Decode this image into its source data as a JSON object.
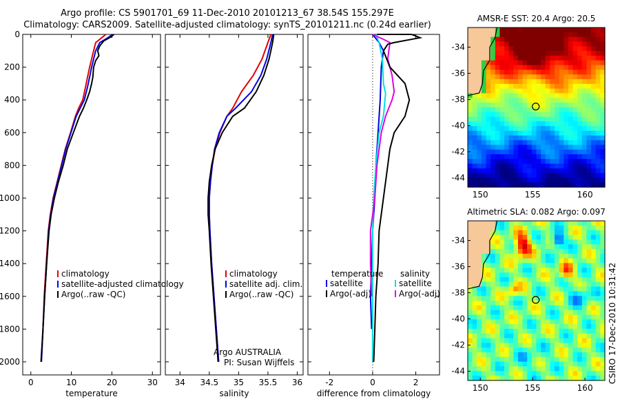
{
  "header": {
    "title_line1": "Argo profile: CS 5901701_69 11-Dec-2010 20101213_67 38.54S 155.297E",
    "title_line2": "Climatology: CARS2009. Satellite-adjusted climatology: synTS_20101211.nc (0.24d earlier)"
  },
  "colors": {
    "climatology": "#e00000",
    "satellite": "#0000e0",
    "argo": "#000000",
    "sat_salinity": "#00e0e0",
    "argo_salinity": "#e000e0",
    "land": "#f6c89a"
  },
  "chart_data": [
    {
      "type": "line",
      "name": "temperature-profile",
      "xlabel": "temperature",
      "xlim": [
        -2,
        32
      ],
      "xticks": [
        0,
        10,
        20,
        30
      ],
      "ylim": [
        0,
        2080
      ],
      "yticks": [
        0,
        200,
        400,
        600,
        800,
        1000,
        1200,
        1400,
        1600,
        1800,
        2000
      ],
      "y_reversed": true,
      "legend": [
        "climatology",
        "satellite-adjusted climatology",
        "Argo(..raw -QC)"
      ],
      "series": [
        {
          "name": "climatology",
          "color": "#e00000",
          "points": [
            [
              18.5,
              0
            ],
            [
              17.5,
              20
            ],
            [
              16,
              50
            ],
            [
              15.5,
              100
            ],
            [
              15,
              150
            ],
            [
              14.5,
              200
            ],
            [
              14,
              260
            ],
            [
              13.5,
              320
            ],
            [
              12.8,
              400
            ],
            [
              11.8,
              450
            ],
            [
              11,
              500
            ],
            [
              9.8,
              600
            ],
            [
              8.5,
              700
            ],
            [
              7.5,
              800
            ],
            [
              6.5,
              900
            ],
            [
              5.5,
              1000
            ],
            [
              4.8,
              1100
            ],
            [
              4.3,
              1200
            ],
            [
              3.8,
              1400
            ],
            [
              3.3,
              1600
            ],
            [
              3,
              1800
            ],
            [
              2.6,
              2000
            ]
          ]
        },
        {
          "name": "satellite",
          "color": "#0000e0",
          "points": [
            [
              20.2,
              0
            ],
            [
              19,
              20
            ],
            [
              17,
              50
            ],
            [
              16,
              100
            ],
            [
              15.5,
              150
            ],
            [
              15,
              200
            ],
            [
              14.5,
              260
            ],
            [
              14,
              320
            ],
            [
              13.2,
              400
            ],
            [
              12.2,
              450
            ],
            [
              11.2,
              500
            ],
            [
              9.9,
              600
            ],
            [
              8.6,
              700
            ],
            [
              7.6,
              800
            ],
            [
              6.6,
              900
            ],
            [
              5.6,
              1000
            ],
            [
              4.9,
              1100
            ],
            [
              4.4,
              1200
            ],
            [
              3.9,
              1400
            ],
            [
              3.4,
              1600
            ],
            [
              3,
              1800
            ],
            [
              2.6,
              2000
            ]
          ]
        },
        {
          "name": "Argo",
          "color": "#000000",
          "points": [
            [
              20.5,
              0
            ],
            [
              19.8,
              15
            ],
            [
              18,
              40
            ],
            [
              17,
              70
            ],
            [
              16.5,
              100
            ],
            [
              16.8,
              130
            ],
            [
              16,
              160
            ],
            [
              15.5,
              200
            ],
            [
              15.3,
              260
            ],
            [
              15,
              300
            ],
            [
              14.5,
              350
            ],
            [
              13.8,
              400
            ],
            [
              13,
              450
            ],
            [
              12,
              500
            ],
            [
              10.5,
              600
            ],
            [
              9,
              700
            ],
            [
              8,
              800
            ],
            [
              6.8,
              900
            ],
            [
              5.8,
              1000
            ],
            [
              5,
              1100
            ],
            [
              4.5,
              1200
            ],
            [
              3.9,
              1400
            ],
            [
              3.4,
              1600
            ],
            [
              3,
              1800
            ],
            [
              2.5,
              2000
            ]
          ]
        }
      ]
    },
    {
      "type": "line",
      "name": "salinity-profile",
      "xlabel": "salinity",
      "xlim": [
        33.75,
        36.1
      ],
      "xticks": [
        34,
        34.5,
        35,
        35.5,
        36
      ],
      "ylim": [
        0,
        2080
      ],
      "y_reversed": true,
      "legend": [
        "climatology",
        "satellite adj. clim.",
        "Argo(..raw -QC)"
      ],
      "annotation": [
        "Argo AUSTRALIA",
        "PI: Susan Wijffels"
      ],
      "series": [
        {
          "name": "climatology",
          "color": "#e00000",
          "points": [
            [
              35.55,
              0
            ],
            [
              35.5,
              50
            ],
            [
              35.4,
              150
            ],
            [
              35.25,
              250
            ],
            [
              35.05,
              350
            ],
            [
              34.9,
              450
            ],
            [
              34.8,
              500
            ],
            [
              34.68,
              600
            ],
            [
              34.6,
              700
            ],
            [
              34.55,
              800
            ],
            [
              34.52,
              900
            ],
            [
              34.5,
              1000
            ],
            [
              34.5,
              1100
            ],
            [
              34.51,
              1200
            ],
            [
              34.54,
              1400
            ],
            [
              34.58,
              1600
            ],
            [
              34.62,
              1800
            ],
            [
              34.66,
              2000
            ]
          ]
        },
        {
          "name": "satellite",
          "color": "#0000e0",
          "points": [
            [
              35.58,
              0
            ],
            [
              35.55,
              50
            ],
            [
              35.48,
              150
            ],
            [
              35.38,
              250
            ],
            [
              35.22,
              350
            ],
            [
              34.95,
              450
            ],
            [
              34.8,
              500
            ],
            [
              34.67,
              600
            ],
            [
              34.59,
              700
            ],
            [
              34.55,
              800
            ],
            [
              34.52,
              900
            ],
            [
              34.5,
              1000
            ],
            [
              34.5,
              1100
            ],
            [
              34.51,
              1200
            ],
            [
              34.54,
              1400
            ],
            [
              34.58,
              1600
            ],
            [
              34.62,
              1800
            ],
            [
              34.66,
              2000
            ]
          ]
        },
        {
          "name": "Argo",
          "color": "#000000",
          "points": [
            [
              35.6,
              0
            ],
            [
              35.58,
              50
            ],
            [
              35.52,
              150
            ],
            [
              35.43,
              250
            ],
            [
              35.3,
              350
            ],
            [
              35.1,
              450
            ],
            [
              34.9,
              500
            ],
            [
              34.72,
              600
            ],
            [
              34.6,
              700
            ],
            [
              34.54,
              800
            ],
            [
              34.5,
              900
            ],
            [
              34.48,
              1000
            ],
            [
              34.48,
              1100
            ],
            [
              34.5,
              1200
            ],
            [
              34.53,
              1400
            ],
            [
              34.57,
              1600
            ],
            [
              34.61,
              1800
            ],
            [
              34.65,
              2000
            ]
          ]
        }
      ]
    },
    {
      "type": "line",
      "name": "difference-profile",
      "xlabel": "difference from climatology",
      "xlim": [
        -3,
        3.1
      ],
      "xticks": [
        -2,
        0,
        2
      ],
      "ylim": [
        0,
        2080
      ],
      "y_reversed": true,
      "legend_temperature": [
        "temperature",
        "satellite",
        "Argo(-adj)"
      ],
      "legend_salinity": [
        "salinity",
        "satellite",
        "Argo(-adj)"
      ],
      "series": [
        {
          "name": "temperature satellite",
          "color": "#0000e0",
          "points": [
            [
              0,
              0
            ],
            [
              0.3,
              50
            ],
            [
              0.5,
              100
            ],
            [
              0.4,
              200
            ],
            [
              0.35,
              400
            ],
            [
              0.25,
              600
            ],
            [
              0.15,
              800
            ],
            [
              0.1,
              1000
            ],
            [
              0,
              1200
            ],
            [
              -0.05,
              1400
            ],
            [
              -0.1,
              1600
            ],
            [
              -0.05,
              1800
            ]
          ]
        },
        {
          "name": "salinity satellite",
          "color": "#00e0e0",
          "points": [
            [
              0.15,
              0
            ],
            [
              0.3,
              50
            ],
            [
              0.45,
              150
            ],
            [
              0.5,
              300
            ],
            [
              0.6,
              360
            ],
            [
              0.5,
              500
            ],
            [
              0.3,
              600
            ],
            [
              0.15,
              800
            ],
            [
              0.05,
              1000
            ],
            [
              0,
              1200
            ],
            [
              0,
              1400
            ],
            [
              0,
              1700
            ],
            [
              0,
              2000
            ]
          ]
        },
        {
          "name": "salinity Argo",
          "color": "#e000e0",
          "points": [
            [
              0,
              0
            ],
            [
              0.5,
              30
            ],
            [
              0.8,
              50
            ],
            [
              0.7,
              150
            ],
            [
              0.9,
              250
            ],
            [
              1,
              350
            ],
            [
              0.9,
              400
            ],
            [
              0.6,
              500
            ],
            [
              0.4,
              600
            ],
            [
              0.2,
              800
            ],
            [
              0.1,
              1000
            ],
            [
              -0.1,
              1200
            ],
            [
              -0.1,
              1400
            ],
            [
              -0.05,
              1600
            ]
          ]
        },
        {
          "name": "temperature Argo",
          "color": "#000000",
          "points": [
            [
              0.2,
              0
            ],
            [
              1.8,
              0
            ],
            [
              2.2,
              20
            ],
            [
              1,
              50
            ],
            [
              0.7,
              60
            ],
            [
              0.5,
              100
            ],
            [
              0.8,
              200
            ],
            [
              1.5,
              300
            ],
            [
              1.7,
              400
            ],
            [
              1.5,
              500
            ],
            [
              1,
              600
            ],
            [
              0.8,
              700
            ],
            [
              0.7,
              800
            ],
            [
              0.5,
              1000
            ],
            [
              0.3,
              1200
            ],
            [
              0.25,
              1400
            ],
            [
              0.15,
              1600
            ],
            [
              0.1,
              1800
            ],
            [
              0.05,
              2000
            ]
          ]
        }
      ]
    },
    {
      "type": "heatmap",
      "name": "sst-map",
      "title": "AMSR-E SST: 20.4 Argo: 20.5",
      "xlim": [
        148.8,
        161.9
      ],
      "ylim": [
        -44.7,
        -32.5
      ],
      "xticks": [
        150,
        155,
        160
      ],
      "yticks": [
        -34,
        -36,
        -38,
        -40,
        -42,
        -44
      ],
      "argo_marker": [
        155.297,
        -38.54
      ]
    },
    {
      "type": "heatmap",
      "name": "sla-map",
      "title": "Altimetric SLA: 0.082 Argo: 0.097",
      "xlim": [
        148.8,
        161.9
      ],
      "ylim": [
        -44.7,
        -32.5
      ],
      "xticks": [
        150,
        155,
        160
      ],
      "yticks": [
        -34,
        -36,
        -38,
        -40,
        -42,
        -44
      ],
      "argo_marker": [
        155.297,
        -38.54
      ]
    }
  ],
  "side_stamp": "CSIRO 17-Dec-2010 10:31:42"
}
